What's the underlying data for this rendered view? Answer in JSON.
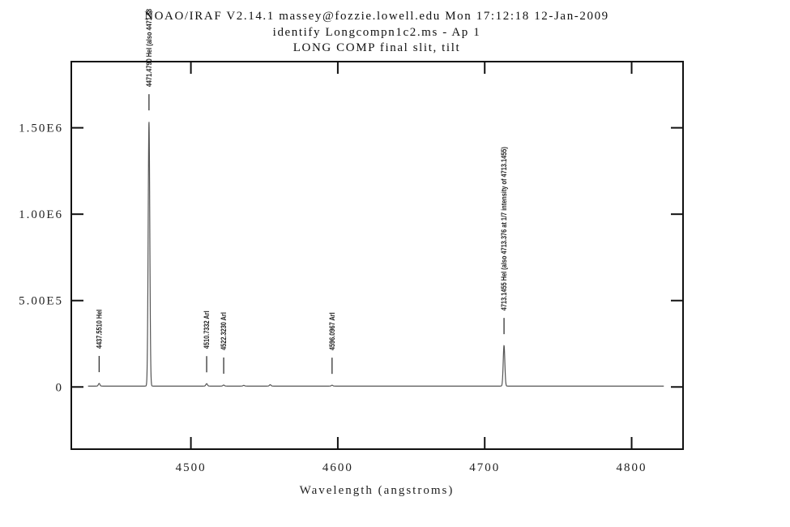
{
  "chart_data": {
    "type": "line",
    "title_lines": [
      "NOAO/IRAF V2.14.1 massey@fozzie.lowell.edu Mon 17:12:18 12-Jan-2009",
      "identify Longcompn1c2.ms - Ap 1",
      "LONG COMP final slit, tilt"
    ],
    "xlabel": "Wavelength (angstroms)",
    "ylabel": "",
    "xlim": [
      4418.6,
      4835
    ],
    "ylim": [
      -360000,
      1883000
    ],
    "x_ticks": [
      4500,
      4600,
      4700,
      4800
    ],
    "x_tick_labels": [
      "4500",
      "4600",
      "4700",
      "4800"
    ],
    "y_ticks": [
      0,
      500000,
      1000000,
      1500000
    ],
    "y_tick_labels": [
      "0",
      "5.00E5",
      "1.00E6",
      "1.50E6"
    ],
    "grid": false,
    "spectrum_range": [
      4430,
      4822
    ],
    "baseline": 5000,
    "emission_lines": [
      {
        "x": 4437.551,
        "peak": 15000
      },
      {
        "x": 4471.479,
        "peak": 1530000
      },
      {
        "x": 4510.7332,
        "peak": 14000
      },
      {
        "x": 4522.323,
        "peak": 6000
      },
      {
        "x": 4536.0,
        "peak": 4000
      },
      {
        "x": 4554.0,
        "peak": 8000
      },
      {
        "x": 4596.0967,
        "peak": 5000
      },
      {
        "x": 4713.1455,
        "peak": 235000
      }
    ],
    "identified_lines": [
      {
        "x": 4437.551,
        "label": "4437.5510 HeI"
      },
      {
        "x": 4471.479,
        "label": "4471.4790 HeI (also 4471.68"
      },
      {
        "x": 4510.7332,
        "label": "4510.7332 ArI"
      },
      {
        "x": 4522.323,
        "label": "4522.3230 ArI"
      },
      {
        "x": 4596.0967,
        "label": "4596.0967 ArI"
      },
      {
        "x": 4713.1455,
        "label": "4713.1455 HeI (also 4713.376 at 1/7 intensity of 4713.1455)"
      }
    ],
    "colors": {
      "axes": "#111111",
      "spectrum": "#555555",
      "markers": "#333333"
    }
  }
}
